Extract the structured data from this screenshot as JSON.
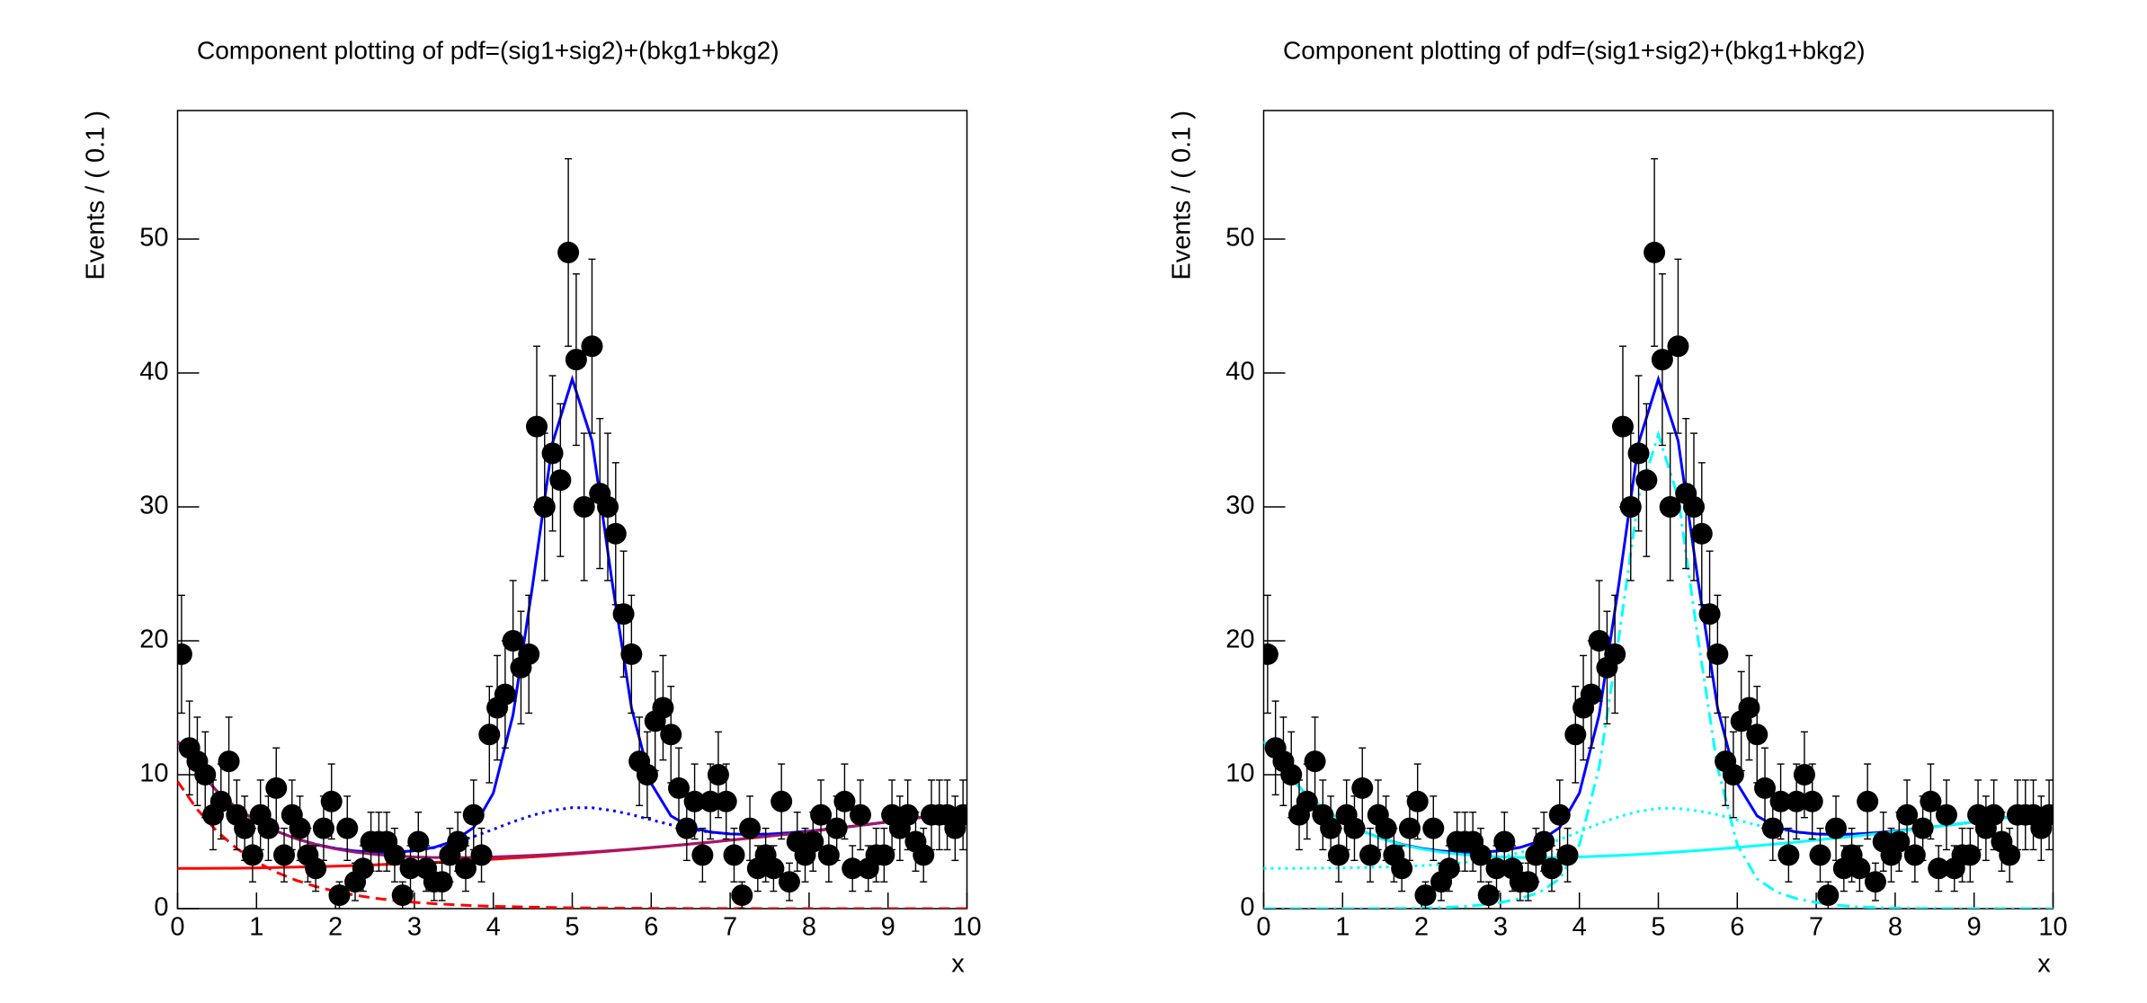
{
  "chart_data": [
    {
      "type": "errorbar",
      "title": "Component plotting of pdf=(sig1+sig2)+(bkg1+bkg2)",
      "x_label": "x",
      "y_label": "Events / ( 0.1 )",
      "xlim": [
        0,
        10
      ],
      "ylim": [
        0,
        59.6
      ],
      "xticks": [
        0,
        1,
        2,
        3,
        4,
        5,
        6,
        7,
        8,
        9,
        10
      ],
      "yticks": [
        0,
        10,
        20,
        30,
        40,
        50
      ],
      "color": "#000000",
      "x": [
        0.05,
        0.15,
        0.25,
        0.35,
        0.45,
        0.55,
        0.65,
        0.75,
        0.85,
        0.95,
        1.05,
        1.15,
        1.25,
        1.35,
        1.45,
        1.55,
        1.65,
        1.75,
        1.85,
        1.95,
        2.05,
        2.15,
        2.25,
        2.35,
        2.45,
        2.55,
        2.65,
        2.75,
        2.85,
        2.95,
        3.05,
        3.15,
        3.25,
        3.35,
        3.45,
        3.55,
        3.65,
        3.75,
        3.85,
        3.95,
        4.05,
        4.15,
        4.25,
        4.35,
        4.45,
        4.55,
        4.65,
        4.75,
        4.85,
        4.95,
        5.05,
        5.15,
        5.25,
        5.35,
        5.45,
        5.55,
        5.65,
        5.75,
        5.85,
        5.95,
        6.05,
        6.15,
        6.25,
        6.35,
        6.45,
        6.55,
        6.65,
        6.75,
        6.85,
        6.95,
        7.05,
        7.15,
        7.25,
        7.35,
        7.45,
        7.55,
        7.65,
        7.75,
        7.85,
        7.95,
        8.05,
        8.15,
        8.25,
        8.35,
        8.45,
        8.55,
        8.65,
        8.75,
        8.85,
        8.95,
        9.05,
        9.15,
        9.25,
        9.35,
        9.45,
        9.55,
        9.65,
        9.75,
        9.85,
        9.95
      ],
      "values": [
        19,
        12,
        11,
        10,
        7,
        8,
        11,
        7,
        6,
        4,
        7,
        6,
        9,
        4,
        7,
        6,
        4,
        3,
        6,
        8,
        1,
        6,
        2,
        3,
        5,
        5,
        5,
        4,
        1,
        3,
        5,
        3,
        2,
        2,
        4,
        5,
        3,
        7,
        4,
        13,
        15,
        16,
        20,
        18,
        19,
        36,
        30,
        34,
        32,
        49,
        41,
        30,
        42,
        31,
        30,
        28,
        22,
        19,
        11,
        10,
        14,
        15,
        13,
        9,
        6,
        8,
        4,
        8,
        10,
        8,
        4,
        1,
        6,
        3,
        4,
        3,
        8,
        2,
        5,
        4,
        5,
        7,
        4,
        6,
        8,
        3,
        7,
        3,
        4,
        4,
        7,
        6,
        7,
        5,
        4,
        7,
        7,
        7,
        6,
        7
      ],
      "errors": [
        4.4,
        3.5,
        3.3,
        3.2,
        2.6,
        2.8,
        3.3,
        2.6,
        2.4,
        2.0,
        2.6,
        2.4,
        3.0,
        2.0,
        2.6,
        2.4,
        2.0,
        1.7,
        2.4,
        2.8,
        1.0,
        2.4,
        1.4,
        1.7,
        2.2,
        2.2,
        2.2,
        2.0,
        1.0,
        1.7,
        2.2,
        1.7,
        1.4,
        1.4,
        2.0,
        2.2,
        1.7,
        2.6,
        2.0,
        3.6,
        3.9,
        4.0,
        4.5,
        4.2,
        4.4,
        6.0,
        5.5,
        5.8,
        5.7,
        7.0,
        6.4,
        5.5,
        6.5,
        5.6,
        5.5,
        5.3,
        4.7,
        4.4,
        3.3,
        3.2,
        3.7,
        3.9,
        3.6,
        3.0,
        2.4,
        2.8,
        2.0,
        2.8,
        3.2,
        2.8,
        2.0,
        1.0,
        2.4,
        1.7,
        2.0,
        1.7,
        2.8,
        1.4,
        2.2,
        2.0,
        2.2,
        2.6,
        2.0,
        2.4,
        2.8,
        1.7,
        2.6,
        1.7,
        2.0,
        2.0,
        2.6,
        2.4,
        2.6,
        2.2,
        2.0,
        2.6,
        2.6,
        2.6,
        2.4,
        2.6
      ],
      "curve_x": [
        0,
        0.25,
        0.5,
        0.75,
        1,
        1.25,
        1.5,
        1.75,
        2,
        2.25,
        2.5,
        2.75,
        3,
        3.25,
        3.5,
        3.75,
        4,
        4.25,
        4.5,
        4.75,
        5,
        5.25,
        5.5,
        5.75,
        6,
        6.25,
        6.5,
        6.75,
        7,
        7.25,
        7.5,
        7.75,
        8,
        8.25,
        8.5,
        8.75,
        9,
        9.25,
        9.5,
        9.75,
        10
      ],
      "curves": [
        {
          "color": "#ff0000",
          "style": "dashed",
          "values": [
            9.5,
            7.4,
            5.76,
            4.49,
            3.49,
            2.72,
            2.12,
            1.65,
            1.29,
            1.0,
            0.78,
            0.61,
            0.47,
            0.37,
            0.29,
            0.22,
            0.17,
            0.14,
            0.11,
            0.08,
            0.06,
            0.05,
            0.04,
            0.03,
            0.02,
            0.02,
            0.01,
            0.01,
            0.01,
            0.01,
            0,
            0,
            0,
            0,
            0,
            0,
            0,
            0,
            0,
            0,
            0
          ]
        },
        {
          "color": "#ff0000",
          "style": "solid",
          "values": [
            3.0,
            3.0,
            3.01,
            3.02,
            3.04,
            3.07,
            3.1,
            3.13,
            3.17,
            3.22,
            3.27,
            3.33,
            3.39,
            3.45,
            3.53,
            3.6,
            3.69,
            3.78,
            3.87,
            3.97,
            4.08,
            4.19,
            4.3,
            4.42,
            4.55,
            4.68,
            4.82,
            4.96,
            5.11,
            5.26,
            5.42,
            5.58,
            5.75,
            5.93,
            6.11,
            6.29,
            6.48,
            6.68,
            6.88,
            7.09,
            7.3
          ]
        },
        {
          "color": "#0000ff",
          "style": "dotted",
          "values": [
            12.5,
            10.4,
            8.77,
            7.51,
            6.53,
            5.79,
            5.23,
            4.8,
            4.5,
            4.3,
            4.2,
            4.21,
            4.32,
            4.55,
            4.93,
            5.38,
            5.92,
            6.49,
            6.98,
            7.34,
            7.54,
            7.53,
            7.34,
            7.02,
            6.63,
            6.26,
            5.94,
            5.7,
            5.58,
            5.54,
            5.57,
            5.66,
            5.79,
            5.95,
            6.12,
            6.29,
            6.48,
            6.68,
            6.88,
            7.09,
            7.3
          ]
        },
        {
          "color": "#0000ff",
          "style": "solid",
          "values": [
            12.5,
            10.4,
            8.77,
            7.51,
            6.53,
            5.79,
            5.23,
            4.8,
            4.5,
            4.3,
            4.2,
            4.21,
            4.32,
            4.57,
            5.05,
            6.05,
            8.63,
            14.47,
            24.24,
            34.77,
            39.54,
            34.96,
            24.6,
            15.0,
            9.34,
            6.93,
            6.06,
            5.72,
            5.58,
            5.54,
            5.57,
            5.66,
            5.79,
            5.95,
            6.12,
            6.29,
            6.48,
            6.68,
            6.88,
            7.09,
            7.3
          ]
        },
        {
          "color": "#a3166b",
          "style": "solid",
          "values": [
            12.5,
            10.4,
            8.77,
            7.51,
            6.53,
            5.79,
            5.22,
            4.78,
            4.46,
            4.22,
            4.05,
            3.94,
            3.86,
            3.82,
            3.82,
            3.82,
            3.86,
            3.92,
            3.98,
            4.05,
            4.14,
            4.24,
            4.34,
            4.45,
            4.57,
            4.7,
            4.83,
            4.97,
            5.12,
            5.27,
            5.42,
            5.58,
            5.75,
            5.93,
            6.11,
            6.29,
            6.48,
            6.68,
            6.88,
            7.09,
            7.3
          ]
        }
      ]
    },
    {
      "type": "errorbar",
      "title": "Component plotting of pdf=(sig1+sig2)+(bkg1+bkg2)",
      "x_label": "x",
      "y_label": "Events / ( 0.1 )",
      "xlim": [
        0,
        10
      ],
      "ylim": [
        0,
        59.6
      ],
      "xticks": [
        0,
        1,
        2,
        3,
        4,
        5,
        6,
        7,
        8,
        9,
        10
      ],
      "yticks": [
        0,
        10,
        20,
        30,
        40,
        50
      ],
      "color": "#000000",
      "x": [
        0.05,
        0.15,
        0.25,
        0.35,
        0.45,
        0.55,
        0.65,
        0.75,
        0.85,
        0.95,
        1.05,
        1.15,
        1.25,
        1.35,
        1.45,
        1.55,
        1.65,
        1.75,
        1.85,
        1.95,
        2.05,
        2.15,
        2.25,
        2.35,
        2.45,
        2.55,
        2.65,
        2.75,
        2.85,
        2.95,
        3.05,
        3.15,
        3.25,
        3.35,
        3.45,
        3.55,
        3.65,
        3.75,
        3.85,
        3.95,
        4.05,
        4.15,
        4.25,
        4.35,
        4.45,
        4.55,
        4.65,
        4.75,
        4.85,
        4.95,
        5.05,
        5.15,
        5.25,
        5.35,
        5.45,
        5.55,
        5.65,
        5.75,
        5.85,
        5.95,
        6.05,
        6.15,
        6.25,
        6.35,
        6.45,
        6.55,
        6.65,
        6.75,
        6.85,
        6.95,
        7.05,
        7.15,
        7.25,
        7.35,
        7.45,
        7.55,
        7.65,
        7.75,
        7.85,
        7.95,
        8.05,
        8.15,
        8.25,
        8.35,
        8.45,
        8.55,
        8.65,
        8.75,
        8.85,
        8.95,
        9.05,
        9.15,
        9.25,
        9.35,
        9.45,
        9.55,
        9.65,
        9.75,
        9.85,
        9.95
      ],
      "values": [
        19,
        12,
        11,
        10,
        7,
        8,
        11,
        7,
        6,
        4,
        7,
        6,
        9,
        4,
        7,
        6,
        4,
        3,
        6,
        8,
        1,
        6,
        2,
        3,
        5,
        5,
        5,
        4,
        1,
        3,
        5,
        3,
        2,
        2,
        4,
        5,
        3,
        7,
        4,
        13,
        15,
        16,
        20,
        18,
        19,
        36,
        30,
        34,
        32,
        49,
        41,
        30,
        42,
        31,
        30,
        28,
        22,
        19,
        11,
        10,
        14,
        15,
        13,
        9,
        6,
        8,
        4,
        8,
        10,
        8,
        4,
        1,
        6,
        3,
        4,
        3,
        8,
        2,
        5,
        4,
        5,
        7,
        4,
        6,
        8,
        3,
        7,
        3,
        4,
        4,
        7,
        6,
        7,
        5,
        4,
        7,
        7,
        7,
        6,
        7
      ],
      "errors": [
        4.4,
        3.5,
        3.3,
        3.2,
        2.6,
        2.8,
        3.3,
        2.6,
        2.4,
        2.0,
        2.6,
        2.4,
        3.0,
        2.0,
        2.6,
        2.4,
        2.0,
        1.7,
        2.4,
        2.8,
        1.0,
        2.4,
        1.4,
        1.7,
        2.2,
        2.2,
        2.2,
        2.0,
        1.0,
        1.7,
        2.2,
        1.7,
        1.4,
        1.4,
        2.0,
        2.2,
        1.7,
        2.6,
        2.0,
        3.6,
        3.9,
        4.0,
        4.5,
        4.2,
        4.4,
        6.0,
        5.5,
        5.8,
        5.7,
        7.0,
        6.4,
        5.5,
        6.5,
        5.6,
        5.5,
        5.3,
        4.7,
        4.4,
        3.3,
        3.2,
        3.7,
        3.9,
        3.6,
        3.0,
        2.4,
        2.8,
        2.0,
        2.8,
        3.2,
        2.8,
        2.0,
        1.0,
        2.4,
        1.7,
        2.0,
        1.7,
        2.8,
        1.4,
        2.2,
        2.0,
        2.2,
        2.6,
        2.0,
        2.4,
        2.8,
        1.7,
        2.6,
        1.7,
        2.0,
        2.0,
        2.6,
        2.4,
        2.6,
        2.2,
        2.0,
        2.6,
        2.6,
        2.6,
        2.4,
        2.6
      ],
      "curve_x": [
        0,
        0.25,
        0.5,
        0.75,
        1,
        1.25,
        1.5,
        1.75,
        2,
        2.25,
        2.5,
        2.75,
        3,
        3.25,
        3.5,
        3.75,
        4,
        4.25,
        4.5,
        4.75,
        5,
        5.25,
        5.5,
        5.75,
        6,
        6.25,
        6.5,
        6.75,
        7,
        7.25,
        7.5,
        7.75,
        8,
        8.25,
        8.5,
        8.75,
        9,
        9.25,
        9.5,
        9.75,
        10
      ],
      "curves": [
        {
          "color": "#00ffff",
          "style": "dotted",
          "values": [
            3.0,
            3.0,
            3.01,
            3.02,
            3.04,
            3.07,
            3.11,
            3.15,
            3.21,
            3.3,
            3.42,
            3.6,
            3.85,
            4.18,
            4.64,
            5.16,
            5.75,
            6.35,
            6.87,
            7.26,
            7.48,
            7.48,
            7.3,
            7.02,
            6.61,
            6.24,
            5.93,
            5.69,
            5.57,
            5.53,
            5.57,
            5.66,
            5.79,
            5.95,
            6.12,
            6.29,
            6.48,
            6.68,
            6.88,
            7.09,
            7.3
          ]
        },
        {
          "color": "#00ffff",
          "style": "dashdot",
          "values": [
            0,
            0,
            0,
            0,
            0,
            0,
            0.01,
            0.02,
            0.04,
            0.08,
            0.15,
            0.27,
            0.46,
            0.75,
            1.23,
            2.23,
            4.77,
            10.55,
            20.26,
            30.72,
            35.4,
            30.72,
            20.26,
            10.55,
            4.77,
            2.23,
            1.23,
            0.75,
            0.46,
            0.27,
            0.15,
            0.08,
            0.04,
            0.02,
            0.01,
            0,
            0,
            0,
            0,
            0,
            0
          ]
        },
        {
          "color": "#0000ff",
          "style": "solid",
          "values": [
            12.5,
            10.4,
            8.77,
            7.51,
            6.53,
            5.79,
            5.23,
            4.8,
            4.5,
            4.3,
            4.2,
            4.21,
            4.32,
            4.57,
            5.05,
            6.05,
            8.63,
            14.47,
            24.24,
            34.77,
            39.54,
            34.96,
            24.6,
            15.0,
            9.34,
            6.93,
            6.06,
            5.72,
            5.58,
            5.54,
            5.57,
            5.66,
            5.79,
            5.95,
            6.12,
            6.29,
            6.48,
            6.68,
            6.88,
            7.09,
            7.3
          ]
        },
        {
          "color": "#00ffff",
          "style": "solid",
          "values": [
            12.5,
            10.4,
            8.77,
            7.51,
            6.53,
            5.79,
            5.22,
            4.78,
            4.46,
            4.22,
            4.05,
            3.94,
            3.86,
            3.82,
            3.82,
            3.82,
            3.86,
            3.92,
            3.98,
            4.05,
            4.14,
            4.24,
            4.34,
            4.45,
            4.57,
            4.7,
            4.83,
            4.97,
            5.12,
            5.27,
            5.42,
            5.58,
            5.75,
            5.93,
            6.11,
            6.29,
            6.48,
            6.68,
            6.88,
            7.09,
            7.3
          ]
        }
      ]
    }
  ]
}
